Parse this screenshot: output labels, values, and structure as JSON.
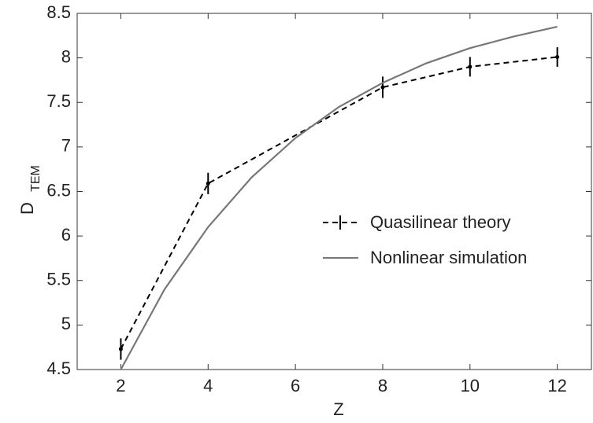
{
  "chart_data": {
    "type": "line",
    "xlabel": "Z",
    "ylabel": "D",
    "ylabel_subscript": "TEM",
    "xlim": [
      1,
      12.8
    ],
    "ylim": [
      4.5,
      8.5
    ],
    "xticks": [
      2,
      4,
      6,
      8,
      10,
      12
    ],
    "yticks": [
      4.5,
      5,
      5.5,
      6,
      6.5,
      7,
      7.5,
      8,
      8.5
    ],
    "legend": "right",
    "series": [
      {
        "name": "Quasilinear theory",
        "color": "#000000",
        "dashed": true,
        "x": [
          2,
          4,
          8,
          10,
          12
        ],
        "values": [
          4.73,
          6.59,
          7.67,
          7.9,
          8.01
        ],
        "errors": [
          0.12,
          0.12,
          0.12,
          0.11,
          0.11
        ]
      },
      {
        "name": "Nonlinear simulation",
        "color": "#777777",
        "dashed": false,
        "x": [
          2,
          3,
          4,
          5,
          6,
          7,
          8,
          9,
          10,
          11,
          12
        ],
        "values": [
          4.5,
          5.4,
          6.1,
          6.66,
          7.1,
          7.45,
          7.72,
          7.94,
          8.11,
          8.24,
          8.35
        ]
      }
    ]
  }
}
